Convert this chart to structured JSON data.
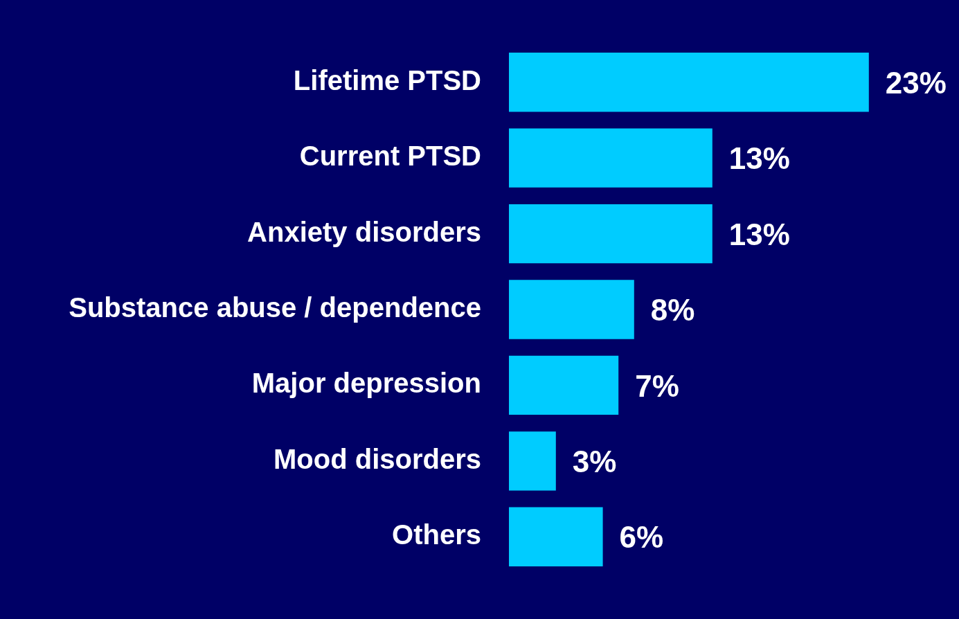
{
  "chart_data": {
    "type": "bar",
    "orientation": "horizontal",
    "categories": [
      "Lifetime PTSD",
      "Current PTSD",
      "Anxiety disorders",
      "Substance abuse / dependence",
      "Major depression",
      "Mood disorders",
      "Others"
    ],
    "values": [
      23,
      13,
      13,
      8,
      7,
      3,
      6
    ],
    "value_labels": [
      "23%",
      "13%",
      "13%",
      "8%",
      "7%",
      "3%",
      "6%"
    ],
    "color": "#00ccff"
  }
}
